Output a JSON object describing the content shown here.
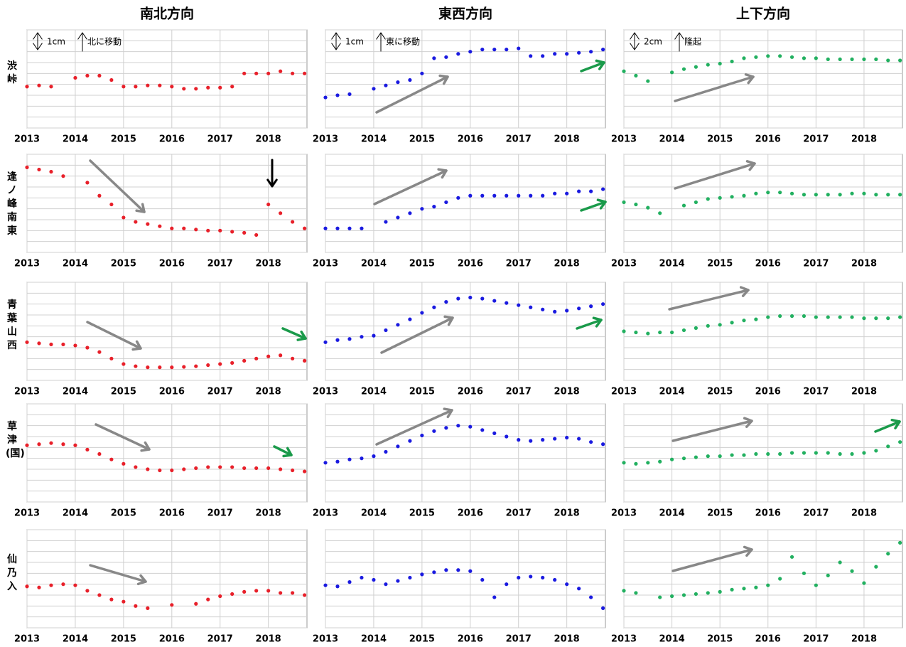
{
  "columns": [
    "南北方向",
    "東西方向",
    "上下方向"
  ],
  "rows": [
    "渋峠",
    "逢ノ峰南東",
    "青葉山西",
    "草津(国)",
    "仙乃入"
  ],
  "chart_data": [
    {
      "type": "scatter",
      "color": "#e8202a",
      "xlim": [
        2013,
        2018.8
      ],
      "xticks": [
        2013,
        2014,
        2015,
        2016,
        2017,
        2018
      ],
      "ylim": [
        0,
        4.5
      ],
      "yticks": [
        0,
        0.5,
        1,
        1.5,
        2,
        2.5,
        3,
        3.5,
        4,
        4.5
      ],
      "scale_label": "1cm",
      "direction_label": "北に移動",
      "x": [
        2013,
        2013.25,
        2013.5,
        2013.75,
        2014,
        2014.25,
        2014.5,
        2014.75,
        2015,
        2015.25,
        2015.5,
        2015.75,
        2016,
        2016.25,
        2016.5,
        2016.75,
        2017,
        2017.25,
        2017.5,
        2017.75,
        2018,
        2018.25,
        2018.5,
        2018.75
      ],
      "values": [
        1.9,
        1.95,
        1.9,
        null,
        2.3,
        2.4,
        2.4,
        2.2,
        1.9,
        1.9,
        1.95,
        1.95,
        1.9,
        1.8,
        1.8,
        1.85,
        1.85,
        1.9,
        2.5,
        2.5,
        2.5,
        2.6,
        2.5,
        2.5
      ]
    },
    {
      "type": "scatter",
      "color": "#1a1ae0",
      "xlim": [
        2013,
        2018.8
      ],
      "xticks": [
        2013,
        2014,
        2015,
        2016,
        2017,
        2018
      ],
      "ylim": [
        0,
        4.5
      ],
      "yticks": [
        0,
        0.5,
        1,
        1.5,
        2,
        2.5,
        3,
        3.5,
        4,
        4.5
      ],
      "scale_label": "1cm",
      "direction_label": "東に移動",
      "x": [
        2013,
        2013.25,
        2013.5,
        2013.75,
        2014,
        2014.25,
        2014.5,
        2014.75,
        2015,
        2015.25,
        2015.5,
        2015.75,
        2016,
        2016.25,
        2016.5,
        2016.75,
        2017,
        2017.25,
        2017.5,
        2017.75,
        2018,
        2018.25,
        2018.5,
        2018.75
      ],
      "values": [
        1.4,
        1.5,
        1.55,
        null,
        1.8,
        1.95,
        2.1,
        2.2,
        2.5,
        3.2,
        3.25,
        3.4,
        3.5,
        3.6,
        3.6,
        3.6,
        3.65,
        3.3,
        3.3,
        3.4,
        3.4,
        3.45,
        3.5,
        3.6
      ]
    },
    {
      "type": "scatter",
      "color": "#22b060",
      "xlim": [
        2013,
        2018.8
      ],
      "xticks": [
        2013,
        2014,
        2015,
        2016,
        2017,
        2018
      ],
      "ylim": [
        0,
        9
      ],
      "yticks": [
        0,
        1,
        2,
        3,
        4,
        5,
        6,
        7,
        8,
        9
      ],
      "scale_label": "2cm",
      "direction_label": "隆起",
      "x": [
        2013,
        2013.25,
        2013.5,
        2013.75,
        2014,
        2014.25,
        2014.5,
        2014.75,
        2015,
        2015.25,
        2015.5,
        2015.75,
        2016,
        2016.25,
        2016.5,
        2016.75,
        2017,
        2017.25,
        2017.5,
        2017.75,
        2018,
        2018.25,
        2018.5,
        2018.75
      ],
      "values": [
        5.2,
        4.8,
        4.3,
        null,
        5.1,
        5.4,
        5.6,
        5.8,
        5.9,
        6.1,
        6.4,
        6.5,
        6.6,
        6.6,
        6.5,
        6.4,
        6.4,
        6.3,
        6.3,
        6.3,
        6.3,
        6.3,
        6.2,
        6.2
      ]
    },
    {
      "type": "scatter",
      "color": "#e8202a",
      "xlim": [
        2013,
        2018.8
      ],
      "xticks": [
        2013,
        2014,
        2015,
        2016,
        2017,
        2018
      ],
      "ylim": [
        0,
        4.5
      ],
      "yticks": [
        0,
        0.5,
        1,
        1.5,
        2,
        2.5,
        3,
        3.5,
        4,
        4.5
      ],
      "x": [
        2013,
        2013.25,
        2013.5,
        2013.75,
        2014,
        2014.25,
        2014.5,
        2014.75,
        2015,
        2015.25,
        2015.5,
        2015.75,
        2016,
        2016.25,
        2016.5,
        2016.75,
        2017,
        2017.25,
        2017.5,
        2017.75,
        2018,
        2018.25,
        2018.5,
        2018.75
      ],
      "values": [
        3.9,
        3.8,
        3.7,
        3.5,
        null,
        3.2,
        2.6,
        2.2,
        1.6,
        1.4,
        1.3,
        1.2,
        1.1,
        1.1,
        1.05,
        1.0,
        1.0,
        0.95,
        0.9,
        0.8,
        2.2,
        1.8,
        1.4,
        1.1
      ]
    },
    {
      "type": "scatter",
      "color": "#1a1ae0",
      "xlim": [
        2013,
        2018.8
      ],
      "xticks": [
        2013,
        2014,
        2015,
        2016,
        2017,
        2018
      ],
      "ylim": [
        0,
        4.5
      ],
      "yticks": [
        0,
        0.5,
        1,
        1.5,
        2,
        2.5,
        3,
        3.5,
        4,
        4.5
      ],
      "x": [
        2013,
        2013.25,
        2013.5,
        2013.75,
        2014,
        2014.25,
        2014.5,
        2014.75,
        2015,
        2015.25,
        2015.5,
        2015.75,
        2016,
        2016.25,
        2016.5,
        2016.75,
        2017,
        2017.25,
        2017.5,
        2017.75,
        2018,
        2018.25,
        2018.5,
        2018.75
      ],
      "values": [
        1.1,
        1.1,
        1.1,
        1.1,
        null,
        1.4,
        1.6,
        1.8,
        2.0,
        2.1,
        2.3,
        2.5,
        2.6,
        2.6,
        2.6,
        2.6,
        2.6,
        2.6,
        2.6,
        2.7,
        2.7,
        2.8,
        2.8,
        2.9
      ]
    },
    {
      "type": "scatter",
      "color": "#22b060",
      "xlim": [
        2013,
        2018.8
      ],
      "xticks": [
        2013,
        2014,
        2015,
        2016,
        2017,
        2018
      ],
      "ylim": [
        0,
        9
      ],
      "yticks": [
        0,
        1,
        2,
        3,
        4,
        5,
        6,
        7,
        8,
        9
      ],
      "x": [
        2013,
        2013.25,
        2013.5,
        2013.75,
        2014,
        2014.25,
        2014.5,
        2014.75,
        2015,
        2015.25,
        2015.5,
        2015.75,
        2016,
        2016.25,
        2016.5,
        2016.75,
        2017,
        2017.25,
        2017.5,
        2017.75,
        2018,
        2018.25,
        2018.5,
        2018.75
      ],
      "values": [
        4.6,
        4.4,
        4.1,
        3.6,
        null,
        4.3,
        4.6,
        4.9,
        5.0,
        5.1,
        5.2,
        5.4,
        5.5,
        5.5,
        5.4,
        5.3,
        5.3,
        5.3,
        5.3,
        5.4,
        5.4,
        5.3,
        5.3,
        5.3
      ]
    },
    {
      "type": "scatter",
      "color": "#e8202a",
      "xlim": [
        2013,
        2018.8
      ],
      "xticks": [
        2013,
        2014,
        2015,
        2016,
        2017,
        2018
      ],
      "ylim": [
        0,
        4.5
      ],
      "yticks": [
        0,
        0.5,
        1,
        1.5,
        2,
        2.5,
        3,
        3.5,
        4,
        4.5
      ],
      "x": [
        2013,
        2013.25,
        2013.5,
        2013.75,
        2014,
        2014.25,
        2014.5,
        2014.75,
        2015,
        2015.25,
        2015.5,
        2015.75,
        2016,
        2016.25,
        2016.5,
        2016.75,
        2017,
        2017.25,
        2017.5,
        2017.75,
        2018,
        2018.25,
        2018.5,
        2018.75
      ],
      "values": [
        1.75,
        1.7,
        1.65,
        1.65,
        1.6,
        1.5,
        1.3,
        1.0,
        0.75,
        0.65,
        0.6,
        0.6,
        0.6,
        0.62,
        0.65,
        0.7,
        0.75,
        0.8,
        0.9,
        1.0,
        1.1,
        1.15,
        1.0,
        0.9
      ]
    },
    {
      "type": "scatter",
      "color": "#1a1ae0",
      "xlim": [
        2013,
        2018.8
      ],
      "xticks": [
        2013,
        2014,
        2015,
        2016,
        2017,
        2018
      ],
      "ylim": [
        0,
        4.5
      ],
      "yticks": [
        0,
        0.5,
        1,
        1.5,
        2,
        2.5,
        3,
        3.5,
        4,
        4.5
      ],
      "x": [
        2013,
        2013.25,
        2013.5,
        2013.75,
        2014,
        2014.25,
        2014.5,
        2014.75,
        2015,
        2015.25,
        2015.5,
        2015.75,
        2016,
        2016.25,
        2016.5,
        2016.75,
        2017,
        2017.25,
        2017.5,
        2017.75,
        2018,
        2018.25,
        2018.5,
        2018.75
      ],
      "values": [
        1.75,
        1.85,
        1.9,
        2.0,
        2.05,
        2.3,
        2.55,
        2.8,
        3.1,
        3.35,
        3.6,
        3.75,
        3.8,
        3.75,
        3.65,
        3.55,
        3.45,
        3.35,
        3.25,
        3.15,
        3.2,
        3.3,
        3.4,
        3.5
      ]
    },
    {
      "type": "scatter",
      "color": "#22b060",
      "xlim": [
        2013,
        2018.8
      ],
      "xticks": [
        2013,
        2014,
        2015,
        2016,
        2017,
        2018
      ],
      "ylim": [
        0,
        9
      ],
      "yticks": [
        0,
        1,
        2,
        3,
        4,
        5,
        6,
        7,
        8,
        9
      ],
      "x": [
        2013,
        2013.25,
        2013.5,
        2013.75,
        2014,
        2014.25,
        2014.5,
        2014.75,
        2015,
        2015.25,
        2015.5,
        2015.75,
        2016,
        2016.25,
        2016.5,
        2016.75,
        2017,
        2017.25,
        2017.5,
        2017.75,
        2018,
        2018.25,
        2018.5,
        2018.75
      ],
      "values": [
        4.5,
        4.4,
        4.3,
        4.4,
        4.4,
        4.6,
        4.8,
        5.0,
        5.1,
        5.3,
        5.5,
        5.6,
        5.8,
        5.9,
        5.9,
        5.9,
        5.8,
        5.8,
        5.8,
        5.8,
        5.7,
        5.7,
        5.7,
        5.8
      ]
    },
    {
      "type": "scatter",
      "color": "#e8202a",
      "xlim": [
        2013,
        2018.8
      ],
      "xticks": [
        2013,
        2014,
        2015,
        2016,
        2017,
        2018
      ],
      "ylim": [
        0,
        4.5
      ],
      "yticks": [
        0,
        0.5,
        1,
        1.5,
        2,
        2.5,
        3,
        3.5,
        4,
        4.5
      ],
      "x": [
        2013,
        2013.25,
        2013.5,
        2013.75,
        2014,
        2014.25,
        2014.5,
        2014.75,
        2015,
        2015.25,
        2015.5,
        2015.75,
        2016,
        2016.25,
        2016.5,
        2016.75,
        2017,
        2017.25,
        2017.5,
        2017.75,
        2018,
        2018.25,
        2018.5,
        2018.75
      ],
      "values": [
        2.6,
        2.65,
        2.7,
        2.65,
        2.6,
        2.4,
        2.2,
        1.95,
        1.75,
        1.6,
        1.5,
        1.45,
        1.45,
        1.5,
        1.55,
        1.6,
        1.6,
        1.6,
        1.55,
        1.55,
        1.55,
        1.5,
        1.45,
        1.4
      ]
    },
    {
      "type": "scatter",
      "color": "#1a1ae0",
      "xlim": [
        2013,
        2018.8
      ],
      "xticks": [
        2013,
        2014,
        2015,
        2016,
        2017,
        2018
      ],
      "ylim": [
        0,
        4.5
      ],
      "yticks": [
        0,
        0.5,
        1,
        1.5,
        2,
        2.5,
        3,
        3.5,
        4,
        4.5
      ],
      "x": [
        2013,
        2013.25,
        2013.5,
        2013.75,
        2014,
        2014.25,
        2014.5,
        2014.75,
        2015,
        2015.25,
        2015.5,
        2015.75,
        2016,
        2016.25,
        2016.5,
        2016.75,
        2017,
        2017.25,
        2017.5,
        2017.75,
        2018,
        2018.25,
        2018.5,
        2018.75
      ],
      "values": [
        1.8,
        1.85,
        1.95,
        2.0,
        2.1,
        2.3,
        2.55,
        2.8,
        3.05,
        3.25,
        3.4,
        3.5,
        3.45,
        3.3,
        3.15,
        3.0,
        2.85,
        2.8,
        2.85,
        2.9,
        2.95,
        2.9,
        2.75,
        2.65
      ]
    },
    {
      "type": "scatter",
      "color": "#22b060",
      "xlim": [
        2013,
        2018.8
      ],
      "xticks": [
        2013,
        2014,
        2015,
        2016,
        2017,
        2018
      ],
      "ylim": [
        0,
        9
      ],
      "yticks": [
        0,
        1,
        2,
        3,
        4,
        5,
        6,
        7,
        8,
        9
      ],
      "x": [
        2013,
        2013.25,
        2013.5,
        2013.75,
        2014,
        2014.25,
        2014.5,
        2014.75,
        2015,
        2015.25,
        2015.5,
        2015.75,
        2016,
        2016.25,
        2016.5,
        2016.75,
        2017,
        2017.25,
        2017.5,
        2017.75,
        2018,
        2018.25,
        2018.5,
        2018.75
      ],
      "values": [
        3.6,
        3.5,
        3.6,
        3.7,
        3.9,
        4.0,
        4.1,
        4.2,
        4.2,
        4.3,
        4.3,
        4.4,
        4.4,
        4.4,
        4.5,
        4.5,
        4.5,
        4.5,
        4.4,
        4.4,
        4.5,
        4.7,
        5.1,
        5.5
      ]
    },
    {
      "type": "scatter",
      "color": "#e8202a",
      "xlim": [
        2013,
        2018.8
      ],
      "xticks": [
        2013,
        2014,
        2015,
        2016,
        2017,
        2018
      ],
      "ylim": [
        0,
        4.5
      ],
      "yticks": [
        0,
        0.5,
        1,
        1.5,
        2,
        2.5,
        3,
        3.5,
        4,
        4.5
      ],
      "x": [
        2013,
        2013.25,
        2013.5,
        2013.75,
        2014,
        2014.25,
        2014.5,
        2014.75,
        2015,
        2015.25,
        2015.5,
        2015.75,
        2016,
        2016.25,
        2016.5,
        2016.75,
        2017,
        2017.25,
        2017.5,
        2017.75,
        2018,
        2018.25,
        2018.5,
        2018.75
      ],
      "values": [
        1.9,
        1.85,
        1.95,
        2.0,
        1.95,
        1.7,
        1.5,
        1.3,
        1.2,
        1.0,
        0.9,
        null,
        1.05,
        null,
        1.1,
        1.3,
        1.45,
        1.55,
        1.65,
        1.7,
        1.7,
        1.6,
        1.6,
        1.5
      ]
    },
    {
      "type": "scatter",
      "color": "#1a1ae0",
      "xlim": [
        2013,
        2018.8
      ],
      "xticks": [
        2013,
        2014,
        2015,
        2016,
        2017,
        2018
      ],
      "ylim": [
        0,
        4.5
      ],
      "yticks": [
        0,
        0.5,
        1,
        1.5,
        2,
        2.5,
        3,
        3.5,
        4,
        4.5
      ],
      "x": [
        2013,
        2013.25,
        2013.5,
        2013.75,
        2014,
        2014.25,
        2014.5,
        2014.75,
        2015,
        2015.25,
        2015.5,
        2015.75,
        2016,
        2016.25,
        2016.5,
        2016.75,
        2017,
        2017.25,
        2017.5,
        2017.75,
        2018,
        2018.25,
        2018.5,
        2018.75
      ],
      "values": [
        1.95,
        1.9,
        2.1,
        2.3,
        2.2,
        2.0,
        2.15,
        2.3,
        2.45,
        2.55,
        2.65,
        2.65,
        2.6,
        2.2,
        1.4,
        2.0,
        2.3,
        2.35,
        2.3,
        2.2,
        2.0,
        1.8,
        1.4,
        0.9
      ]
    },
    {
      "type": "scatter",
      "color": "#22b060",
      "xlim": [
        2013,
        2018.8
      ],
      "xticks": [
        2013,
        2014,
        2015,
        2016,
        2017,
        2018
      ],
      "ylim": [
        0,
        9
      ],
      "yticks": [
        0,
        1,
        2,
        3,
        4,
        5,
        6,
        7,
        8,
        9
      ],
      "x": [
        2013,
        2013.25,
        2013.5,
        2013.75,
        2014,
        2014.25,
        2014.5,
        2014.75,
        2015,
        2015.25,
        2015.5,
        2015.75,
        2016,
        2016.25,
        2016.5,
        2016.75,
        2017,
        2017.25,
        2017.5,
        2017.75,
        2018,
        2018.25,
        2018.5,
        2018.75
      ],
      "values": [
        3.4,
        3.2,
        null,
        2.8,
        2.9,
        3.0,
        3.1,
        3.2,
        3.3,
        3.5,
        3.6,
        3.7,
        3.9,
        4.5,
        6.5,
        5.0,
        3.9,
        4.8,
        6.0,
        5.2,
        4.1,
        5.6,
        6.8,
        7.8
      ]
    }
  ]
}
